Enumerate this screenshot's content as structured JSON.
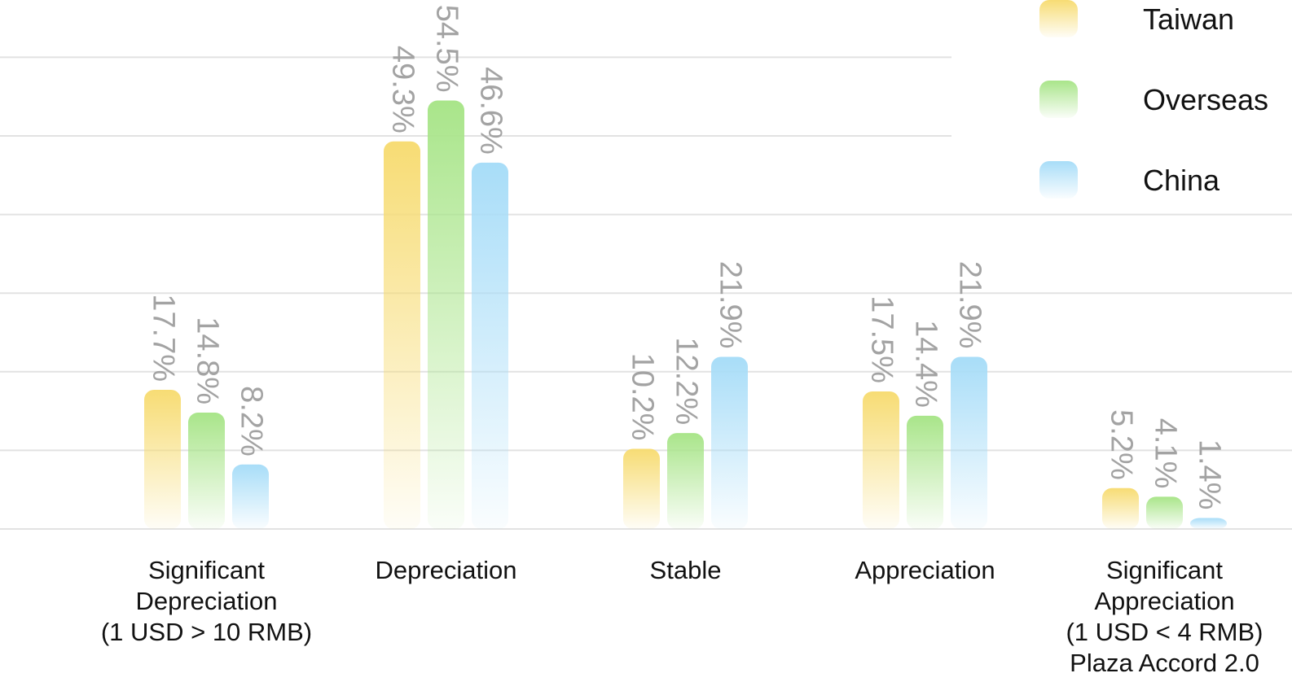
{
  "chart_data": {
    "type": "bar",
    "categories": [
      [
        "Significant",
        "Depreciation",
        "(1 USD > 10 RMB)"
      ],
      [
        "Depreciation"
      ],
      [
        "Stable"
      ],
      [
        "Appreciation"
      ],
      [
        "Significant",
        "Appreciation",
        "(1 USD < 4 RMB)",
        "Plaza Accord 2.0"
      ]
    ],
    "series": [
      {
        "name": "Taiwan",
        "values": [
          17.7,
          49.3,
          10.2,
          17.5,
          5.2
        ],
        "labels": [
          "17.7%",
          "49.3%",
          "10.2%",
          "17.5%",
          "5.2%"
        ],
        "color": "#f7dc74"
      },
      {
        "name": "Overseas",
        "values": [
          14.8,
          54.5,
          12.2,
          14.4,
          4.1
        ],
        "labels": [
          "14.8%",
          "54.5%",
          "12.2%",
          "14.4%",
          "4.1%"
        ],
        "color": "#a9e58a"
      },
      {
        "name": "China",
        "values": [
          8.2,
          46.6,
          21.9,
          21.9,
          1.4
        ],
        "labels": [
          "8.2%",
          "46.6%",
          "21.9%",
          "21.9%",
          "1.4%"
        ],
        "color": "#a8ddf8"
      }
    ],
    "ylim": [
      0,
      60
    ],
    "grid": true,
    "legend_position": "top-right",
    "value_label_orientation": "vertical"
  }
}
